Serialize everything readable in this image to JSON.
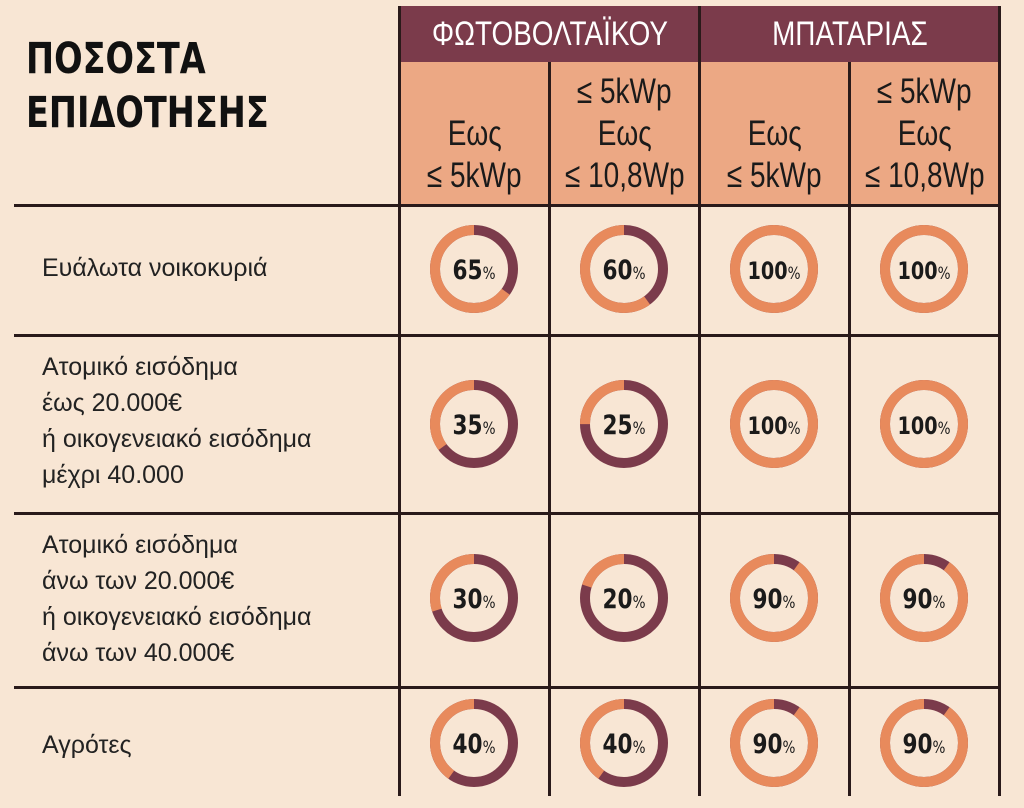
{
  "title_lines": [
    "ΠΟΣΟΣΤΑ",
    "ΕΠΙΔΟΤΗΣΗΣ"
  ],
  "groups": [
    "ΦΩΤΟΒΟΛΤΑΪΚΟΥ",
    "ΜΠΑΤΑΡΙΑΣ"
  ],
  "subheaders": [
    [
      "Εως",
      "≤ 5kWp"
    ],
    [
      "≤ 5kWp",
      "Εως",
      "≤ 10,8Wp"
    ],
    [
      "Εως",
      "≤ 5kWp"
    ],
    [
      "≤ 5kWp",
      "Εως",
      "≤ 10,8Wp"
    ]
  ],
  "rows": [
    [
      "Ευάλωτα νοικοκυριά"
    ],
    [
      "Ατομικό εισόδημα",
      "έως 20.000€",
      "ή οικογενειακό εισόδημα",
      "μέχρι 40.000"
    ],
    [
      "Ατομικό εισόδημα",
      "άνω των 20.000€",
      "ή οικογενειακό εισόδημα",
      "άνω των 40.000€"
    ],
    [
      "Αγρότες"
    ]
  ],
  "colors": {
    "subsidy": "#e88a5c",
    "remainder": "#7b3b4b",
    "header_dark": "#7b3b4b",
    "header_light": "#eca884",
    "background": "#f8e6d4"
  },
  "chart_data": {
    "type": "table",
    "title": "ΠΟΣΟΣΤΑ ΕΠΙΔΟΤΗΣΗΣ",
    "columns": [
      {
        "group": "ΦΩΤΟΒΟΛΤΑΪΚΟΥ",
        "range": "Εως ≤ 5kWp"
      },
      {
        "group": "ΦΩΤΟΒΟΛΤΑΪΚΟΥ",
        "range": "≤ 5kWp Εως ≤ 10,8Wp"
      },
      {
        "group": "ΜΠΑΤΑΡΙΑΣ",
        "range": "Εως ≤ 5kWp"
      },
      {
        "group": "ΜΠΑΤΑΡΙΑΣ",
        "range": "≤ 5kWp Εως ≤ 10,8Wp"
      }
    ],
    "row_labels": [
      "Ευάλωτα νοικοκυριά",
      "Ατομικό εισόδημα έως 20.000€ ή οικογενειακό εισόδημα μέχρι 40.000",
      "Ατομικό εισόδημα άνω των 20.000€ ή οικογενειακό εισόδημα άνω των 40.000€",
      "Αγρότες"
    ],
    "values": [
      [
        65,
        60,
        100,
        100
      ],
      [
        35,
        25,
        100,
        100
      ],
      [
        30,
        20,
        90,
        90
      ],
      [
        40,
        40,
        90,
        90
      ]
    ],
    "unit": "%"
  }
}
